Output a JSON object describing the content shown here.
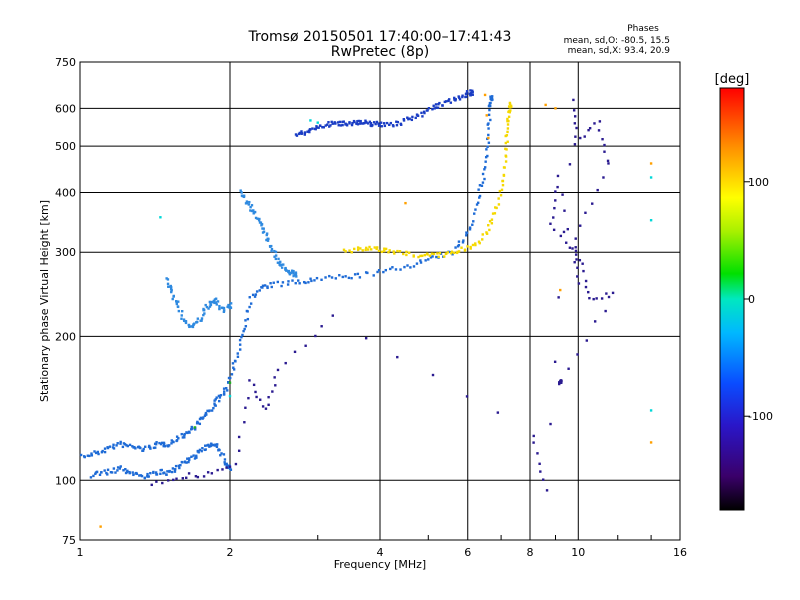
{
  "chart_data": {
    "type": "scatter",
    "title": "Tromsø 20150501 17:40:00–17:41:43",
    "subtitle": "RwPretec (8p)",
    "xlabel": "Frequency [MHz]",
    "ylabel": "Stationary phase Virtual Height [km]",
    "x_scale": "log",
    "y_scale": "log",
    "xlim": [
      1,
      16
    ],
    "ylim": [
      75,
      750
    ],
    "x_ticks": [
      "1",
      "2",
      "4",
      "6",
      "8",
      "10",
      "16"
    ],
    "y_ticks": [
      "75",
      "100",
      "200",
      "300",
      "400",
      "500",
      "600",
      "750"
    ],
    "grid": true,
    "phases": {
      "label": "Phases",
      "o_line": "mean, sd,O: -80.5, 15.5",
      "x_line": "mean, sd,X:  93.4, 20.9"
    },
    "colorbar": {
      "label": "[deg]",
      "ticks": [
        "100",
        "0",
        "-100"
      ],
      "tick_values": [
        100,
        0,
        -100
      ],
      "range": [
        -180,
        180
      ]
    },
    "series": [
      {
        "color": "#1e6bd6",
        "points": [
          [
            1.0,
            112
          ],
          [
            1.05,
            113
          ],
          [
            1.1,
            115
          ],
          [
            1.15,
            117
          ],
          [
            1.2,
            119
          ],
          [
            1.25,
            118
          ],
          [
            1.3,
            117
          ],
          [
            1.35,
            116
          ],
          [
            1.4,
            118
          ],
          [
            1.45,
            119
          ],
          [
            1.5,
            119
          ],
          [
            1.55,
            121
          ],
          [
            1.6,
            124
          ],
          [
            1.65,
            126
          ],
          [
            1.7,
            130
          ],
          [
            1.75,
            134
          ],
          [
            1.8,
            138
          ],
          [
            1.85,
            143
          ],
          [
            1.9,
            148
          ],
          [
            1.95,
            153
          ],
          [
            2.0,
            162
          ],
          [
            2.05,
            176
          ],
          [
            2.1,
            196
          ],
          [
            2.15,
            216
          ],
          [
            2.2,
            240
          ],
          [
            2.3,
            252
          ],
          [
            2.4,
            256
          ],
          [
            2.6,
            258
          ],
          [
            2.8,
            260
          ],
          [
            3.0,
            263
          ],
          [
            3.3,
            266
          ],
          [
            3.6,
            268
          ],
          [
            4.0,
            272
          ],
          [
            4.4,
            278
          ],
          [
            4.8,
            286
          ],
          [
            5.2,
            292
          ],
          [
            5.6,
            300
          ],
          [
            5.9,
            320
          ],
          [
            6.1,
            345
          ],
          [
            6.3,
            390
          ],
          [
            6.45,
            430
          ],
          [
            6.55,
            480
          ],
          [
            6.6,
            540
          ],
          [
            6.65,
            600
          ],
          [
            6.7,
            630
          ]
        ]
      },
      {
        "color": "#1e6bd6",
        "points": [
          [
            1.05,
            102
          ],
          [
            1.1,
            104
          ],
          [
            1.15,
            104
          ],
          [
            1.2,
            106
          ],
          [
            1.25,
            104
          ],
          [
            1.3,
            103
          ],
          [
            1.35,
            102
          ],
          [
            1.4,
            103
          ],
          [
            1.45,
            104
          ],
          [
            1.5,
            103
          ],
          [
            1.55,
            106
          ],
          [
            1.6,
            108
          ],
          [
            1.65,
            110
          ],
          [
            1.7,
            112
          ],
          [
            1.75,
            115
          ],
          [
            1.8,
            118
          ],
          [
            1.85,
            120
          ],
          [
            1.9,
            116
          ],
          [
            1.95,
            110
          ],
          [
            2.0,
            106
          ]
        ]
      },
      {
        "color": "#2f8ae0",
        "points": [
          [
            1.5,
            262
          ],
          [
            1.52,
            252
          ],
          [
            1.55,
            240
          ],
          [
            1.58,
            228
          ],
          [
            1.62,
            216
          ],
          [
            1.66,
            210
          ],
          [
            1.7,
            212
          ],
          [
            1.74,
            216
          ],
          [
            1.78,
            226
          ],
          [
            1.82,
            234
          ],
          [
            1.86,
            238
          ],
          [
            1.9,
            232
          ],
          [
            1.95,
            226
          ],
          [
            2.0,
            232
          ]
        ]
      },
      {
        "color": "#2f8ae0",
        "points": [
          [
            2.1,
            400
          ],
          [
            2.15,
            385
          ],
          [
            2.2,
            372
          ],
          [
            2.25,
            360
          ],
          [
            2.3,
            346
          ],
          [
            2.35,
            330
          ],
          [
            2.4,
            315
          ],
          [
            2.45,
            300
          ],
          [
            2.5,
            288
          ],
          [
            2.55,
            280
          ],
          [
            2.6,
            276
          ],
          [
            2.65,
            272
          ],
          [
            2.7,
            270
          ]
        ]
      },
      {
        "color": "#1a3dc4",
        "points": [
          [
            2.7,
            525
          ],
          [
            2.8,
            532
          ],
          [
            2.9,
            540
          ],
          [
            3.0,
            548
          ],
          [
            3.1,
            553
          ],
          [
            3.2,
            556
          ],
          [
            3.3,
            558
          ],
          [
            3.4,
            559
          ],
          [
            3.5,
            560
          ],
          [
            3.6,
            560
          ],
          [
            3.7,
            559
          ],
          [
            3.8,
            558
          ],
          [
            3.9,
            557
          ],
          [
            4.0,
            555
          ],
          [
            4.2,
            556
          ],
          [
            4.4,
            560
          ],
          [
            4.6,
            570
          ],
          [
            4.8,
            582
          ],
          [
            5.0,
            595
          ],
          [
            5.2,
            606
          ],
          [
            5.4,
            616
          ],
          [
            5.6,
            625
          ],
          [
            5.8,
            635
          ],
          [
            6.0,
            643
          ],
          [
            6.1,
            648
          ]
        ]
      },
      {
        "color": "#f5d800",
        "points": [
          [
            3.4,
            300
          ],
          [
            3.6,
            303
          ],
          [
            3.8,
            305
          ],
          [
            4.0,
            304
          ],
          [
            4.2,
            302
          ],
          [
            4.5,
            298
          ],
          [
            4.8,
            296
          ],
          [
            5.1,
            295
          ],
          [
            5.4,
            297
          ],
          [
            5.7,
            300
          ],
          [
            6.0,
            306
          ],
          [
            6.3,
            316
          ],
          [
            6.6,
            335
          ],
          [
            6.8,
            362
          ],
          [
            7.0,
            400
          ],
          [
            7.1,
            440
          ],
          [
            7.15,
            490
          ],
          [
            7.2,
            540
          ],
          [
            7.25,
            580
          ],
          [
            7.3,
            610
          ]
        ]
      },
      {
        "color": "#ffa000",
        "points": [
          [
            6.5,
            640
          ],
          [
            6.55,
            580
          ],
          [
            6.6,
            520
          ],
          [
            8.6,
            610
          ],
          [
            9.0,
            600
          ],
          [
            4.5,
            380
          ],
          [
            14.0,
            460
          ],
          [
            9.2,
            250
          ],
          [
            14.0,
            120
          ],
          [
            1.1,
            80
          ]
        ]
      },
      {
        "color": "#00d8d8",
        "points": [
          [
            2.9,
            566
          ],
          [
            3.0,
            560
          ],
          [
            2.0,
            150
          ],
          [
            1.45,
            355
          ],
          [
            14.0,
            350
          ],
          [
            14.0,
            430
          ],
          [
            14.0,
            140
          ]
        ]
      },
      {
        "color": "#20b020",
        "points": [
          [
            1.7,
            129
          ],
          [
            2.0,
            160
          ]
        ]
      },
      {
        "color": "#2a1a90",
        "points": [
          [
            1.4,
            98
          ],
          [
            1.6,
            102
          ],
          [
            1.8,
            103
          ],
          [
            2.05,
            108
          ],
          [
            2.2,
            160
          ],
          [
            2.35,
            140
          ],
          [
            2.5,
            170
          ],
          [
            3.2,
            220
          ],
          [
            8.1,
            125
          ],
          [
            8.6,
            95
          ],
          [
            9.8,
            620
          ],
          [
            9.9,
            510
          ],
          [
            11.0,
            560
          ],
          [
            11.5,
            455
          ],
          [
            9.9,
            320
          ],
          [
            10.0,
            260
          ],
          [
            9.1,
            430
          ],
          [
            8.8,
            345
          ],
          [
            10.1,
            290
          ],
          [
            10.5,
            240
          ],
          [
            11.8,
            245
          ],
          [
            9.2,
            160
          ]
        ]
      }
    ]
  }
}
